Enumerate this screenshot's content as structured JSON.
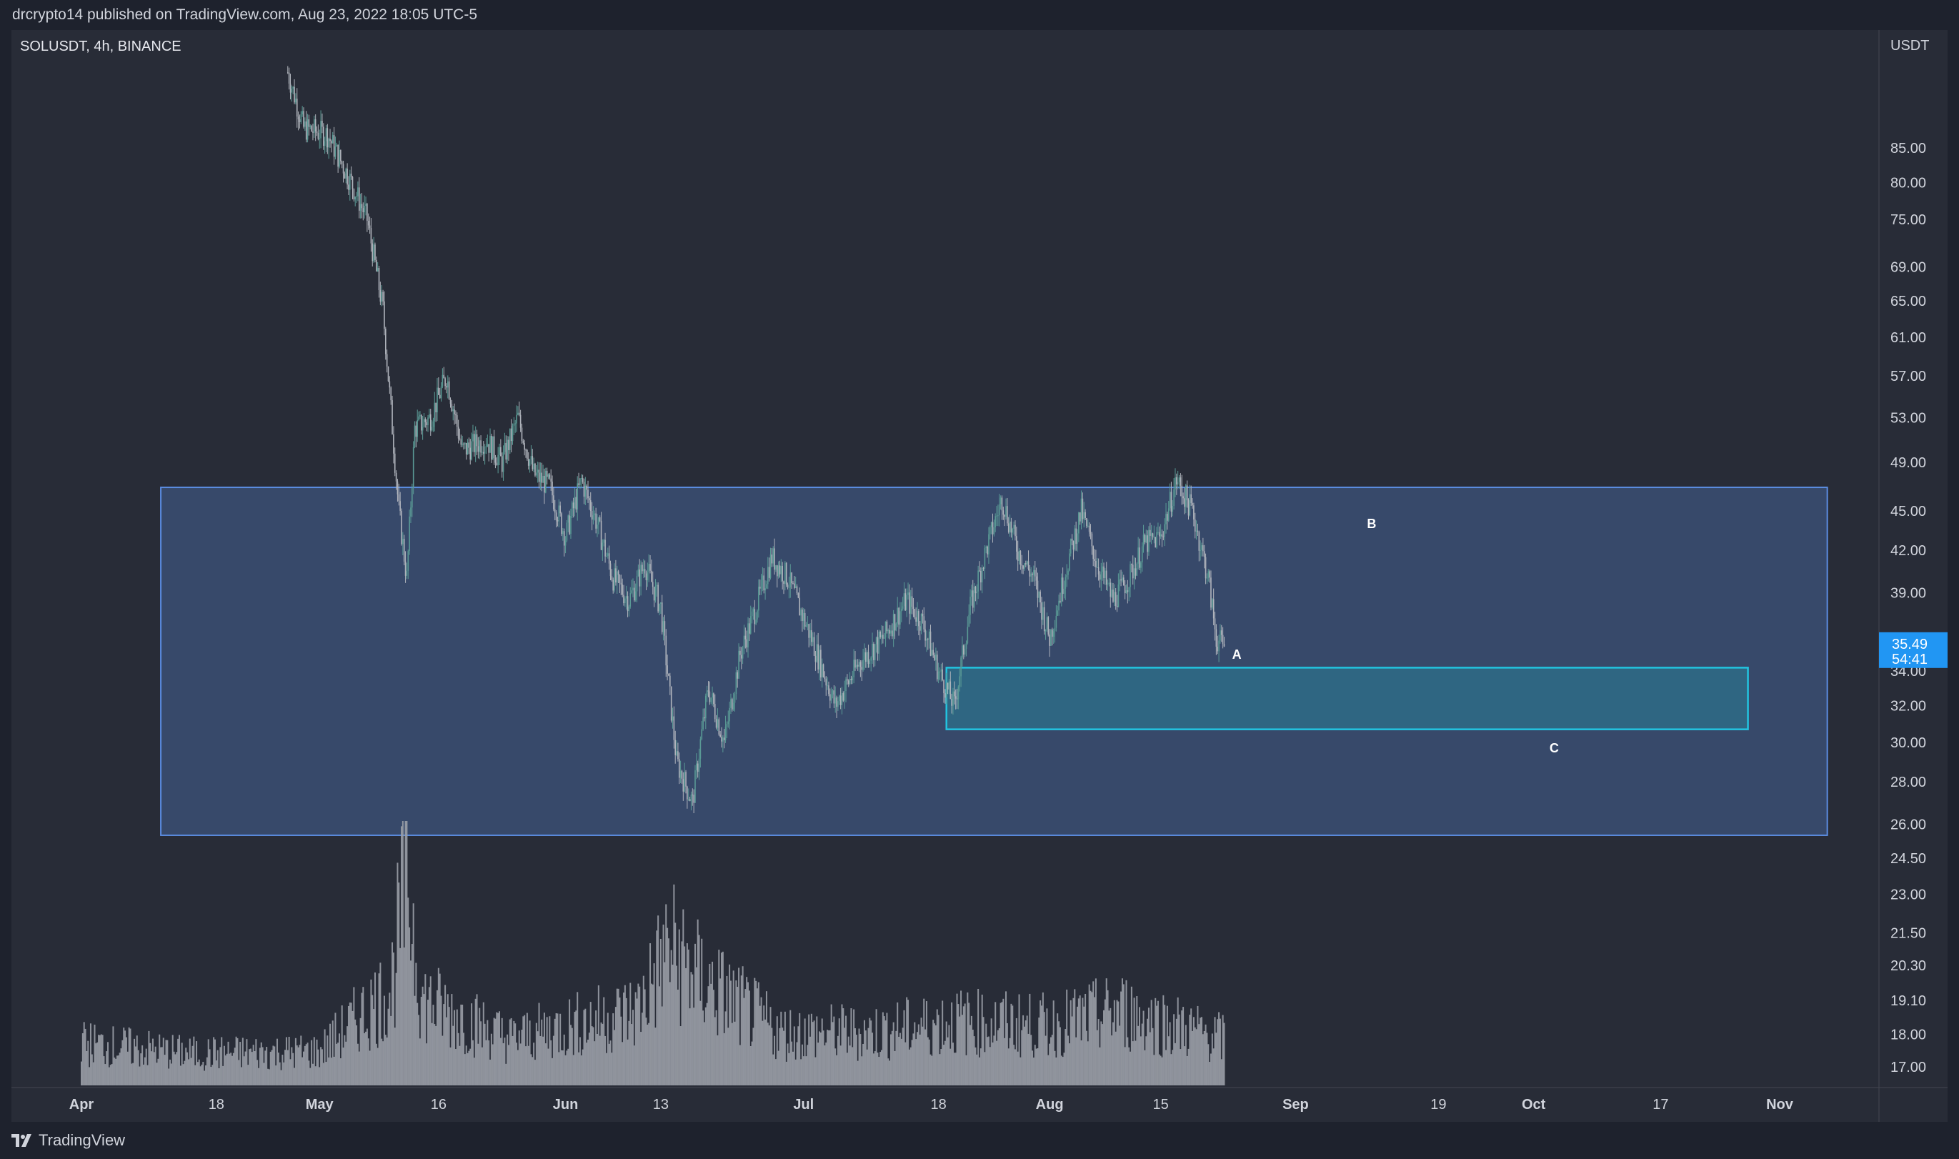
{
  "header": {
    "published_text": "drcrypto14 published on TradingView.com, Aug 23, 2022 18:05 UTC-5"
  },
  "symbol": {
    "label": "SOLUSDT, 4h, BINANCE"
  },
  "footer": {
    "brand": "TradingView",
    "logo_icon": "tradingview-logo-icon"
  },
  "colors": {
    "background": "#1e222d",
    "pane": "#282c37",
    "candle_up": "#5a9a95",
    "candle_down": "#b0b4bc",
    "volume": "#9a9ea7",
    "range_fill": "#37496a",
    "range_border": "#5b8ce0",
    "demand_fill": "#2f6682",
    "demand_border": "#22c4e0",
    "price_tag": "#2196f3"
  },
  "chart_data": {
    "type": "candlestick",
    "symbol": "SOLUSDT",
    "timeframe": "4h",
    "exchange": "BINANCE",
    "y_axis_unit": "USDT",
    "y_scale": "log",
    "ylim": [
      16.6,
      100
    ],
    "x_ticks": [
      {
        "label": "Apr",
        "date": "2022-04-01"
      },
      {
        "label": "18",
        "date": "2022-04-18"
      },
      {
        "label": "May",
        "date": "2022-05-01"
      },
      {
        "label": "16",
        "date": "2022-05-16"
      },
      {
        "label": "Jun",
        "date": "2022-06-01"
      },
      {
        "label": "13",
        "date": "2022-06-13"
      },
      {
        "label": "Jul",
        "date": "2022-07-01"
      },
      {
        "label": "18",
        "date": "2022-07-18"
      },
      {
        "label": "Aug",
        "date": "2022-08-01"
      },
      {
        "label": "15",
        "date": "2022-08-15"
      },
      {
        "label": "Sep",
        "date": "2022-09-01"
      },
      {
        "label": "19",
        "date": "2022-09-19"
      },
      {
        "label": "Oct",
        "date": "2022-10-01"
      },
      {
        "label": "17",
        "date": "2022-10-17"
      },
      {
        "label": "Nov",
        "date": "2022-11-01"
      }
    ],
    "y_ticks": [
      "85.00",
      "80.00",
      "75.00",
      "69.00",
      "65.00",
      "61.00",
      "57.00",
      "53.00",
      "49.00",
      "45.00",
      "42.00",
      "39.00",
      "36.00",
      "34.00",
      "32.00",
      "30.00",
      "28.00",
      "26.00",
      "24.50",
      "23.00",
      "21.50",
      "20.30",
      "19.10",
      "18.00",
      "17.00"
    ],
    "last_price": "35.49",
    "countdown": "54:41",
    "price_path": [
      {
        "date": "2022-04-27",
        "close": 97.0
      },
      {
        "date": "2022-04-29",
        "close": 88.0
      },
      {
        "date": "2022-05-02",
        "close": 87.0
      },
      {
        "date": "2022-05-05",
        "close": 80.0
      },
      {
        "date": "2022-05-07",
        "close": 75.0
      },
      {
        "date": "2022-05-09",
        "close": 64.0
      },
      {
        "date": "2022-05-11",
        "close": 45.0
      },
      {
        "date": "2022-05-12",
        "close": 40.0
      },
      {
        "date": "2022-05-13",
        "close": 52.0
      },
      {
        "date": "2022-05-15",
        "close": 53.0
      },
      {
        "date": "2022-05-17",
        "close": 57.0
      },
      {
        "date": "2022-05-19",
        "close": 50.0
      },
      {
        "date": "2022-05-22",
        "close": 51.0
      },
      {
        "date": "2022-05-24",
        "close": 49.0
      },
      {
        "date": "2022-05-26",
        "close": 53.0
      },
      {
        "date": "2022-05-28",
        "close": 48.0
      },
      {
        "date": "2022-05-30",
        "close": 47.0
      },
      {
        "date": "2022-06-01",
        "close": 43.0
      },
      {
        "date": "2022-06-03",
        "close": 47.5
      },
      {
        "date": "2022-06-05",
        "close": 44.0
      },
      {
        "date": "2022-06-07",
        "close": 40.0
      },
      {
        "date": "2022-06-09",
        "close": 38.5
      },
      {
        "date": "2022-06-11",
        "close": 41.0
      },
      {
        "date": "2022-06-13",
        "close": 38.0
      },
      {
        "date": "2022-06-15",
        "close": 29.0
      },
      {
        "date": "2022-06-17",
        "close": 27.0
      },
      {
        "date": "2022-06-18",
        "close": 30.0
      },
      {
        "date": "2022-06-19",
        "close": 33.0
      },
      {
        "date": "2022-06-21",
        "close": 30.0
      },
      {
        "date": "2022-06-23",
        "close": 35.0
      },
      {
        "date": "2022-06-25",
        "close": 38.0
      },
      {
        "date": "2022-06-27",
        "close": 41.5
      },
      {
        "date": "2022-06-29",
        "close": 40.0
      },
      {
        "date": "2022-07-02",
        "close": 36.0
      },
      {
        "date": "2022-07-05",
        "close": 32.0
      },
      {
        "date": "2022-07-08",
        "close": 34.5
      },
      {
        "date": "2022-07-11",
        "close": 36.0
      },
      {
        "date": "2022-07-14",
        "close": 38.5
      },
      {
        "date": "2022-07-16",
        "close": 37.0
      },
      {
        "date": "2022-07-18",
        "close": 34.0
      },
      {
        "date": "2022-07-20",
        "close": 32.0
      },
      {
        "date": "2022-07-22",
        "close": 38.0
      },
      {
        "date": "2022-07-24",
        "close": 42.0
      },
      {
        "date": "2022-07-26",
        "close": 46.0
      },
      {
        "date": "2022-07-28",
        "close": 42.0
      },
      {
        "date": "2022-07-30",
        "close": 40.0
      },
      {
        "date": "2022-08-01",
        "close": 36.0
      },
      {
        "date": "2022-08-03",
        "close": 40.5
      },
      {
        "date": "2022-08-05",
        "close": 45.0
      },
      {
        "date": "2022-08-07",
        "close": 41.0
      },
      {
        "date": "2022-08-09",
        "close": 38.5
      },
      {
        "date": "2022-08-11",
        "close": 40.0
      },
      {
        "date": "2022-08-13",
        "close": 42.5
      },
      {
        "date": "2022-08-15",
        "close": 43.0
      },
      {
        "date": "2022-08-17",
        "close": 47.5
      },
      {
        "date": "2022-08-19",
        "close": 45.0
      },
      {
        "date": "2022-08-21",
        "close": 40.0
      },
      {
        "date": "2022-08-22",
        "close": 36.0
      },
      {
        "date": "2022-08-23",
        "close": 35.49
      }
    ],
    "volume_path": [
      {
        "date": "2022-04-01",
        "level": 0.2
      },
      {
        "date": "2022-04-15",
        "level": 0.15
      },
      {
        "date": "2022-05-01",
        "level": 0.16
      },
      {
        "date": "2022-05-10",
        "level": 0.45
      },
      {
        "date": "2022-05-12",
        "level": 1.0
      },
      {
        "date": "2022-05-14",
        "level": 0.4
      },
      {
        "date": "2022-05-25",
        "level": 0.22
      },
      {
        "date": "2022-06-10",
        "level": 0.35
      },
      {
        "date": "2022-06-14",
        "level": 0.65
      },
      {
        "date": "2022-06-18",
        "level": 0.5
      },
      {
        "date": "2022-06-28",
        "level": 0.25
      },
      {
        "date": "2022-07-10",
        "level": 0.25
      },
      {
        "date": "2022-07-20",
        "level": 0.3
      },
      {
        "date": "2022-08-01",
        "level": 0.28
      },
      {
        "date": "2022-08-10",
        "level": 0.35
      },
      {
        "date": "2022-08-23",
        "level": 0.22
      }
    ],
    "annotations": [
      {
        "label": "A",
        "date": "2022-08-24",
        "price": 35.0
      },
      {
        "label": "B",
        "date": "2022-09-10",
        "price": 44.0
      },
      {
        "label": "C",
        "date": "2022-10-03",
        "price": 29.7
      }
    ],
    "zones": [
      {
        "name": "range",
        "start_date": "2022-04-11",
        "end_date": "2022-11-07",
        "high": 46.9,
        "low": 25.5
      },
      {
        "name": "demand",
        "start_date": "2022-07-19",
        "end_date": "2022-10-28",
        "high": 34.2,
        "low": 30.7
      }
    ]
  }
}
